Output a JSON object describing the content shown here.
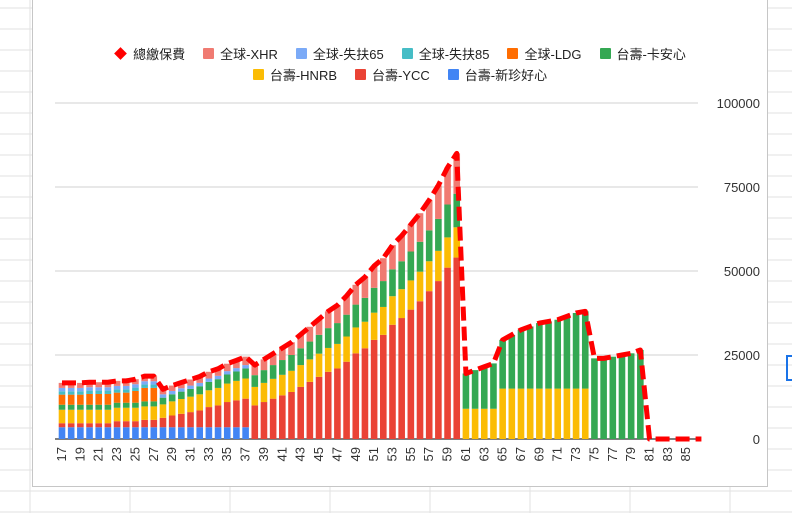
{
  "chart_data": {
    "type": "bar",
    "stacked": true,
    "x_start_age": 17,
    "x_end_age": 86,
    "x_tick_labels": [
      "17",
      "19",
      "21",
      "23",
      "25",
      "27",
      "29",
      "31",
      "33",
      "35",
      "37",
      "39",
      "41",
      "43",
      "45",
      "47",
      "49",
      "51",
      "53",
      "55",
      "57",
      "59",
      "61",
      "63",
      "65",
      "67",
      "69",
      "71",
      "73",
      "75",
      "77",
      "79",
      "81",
      "83",
      "85"
    ],
    "y_ticks": [
      "0",
      "25000",
      "50000",
      "75000",
      "100000"
    ],
    "y_tick_values": [
      0,
      25000,
      50000,
      75000,
      100000
    ],
    "ylim": [
      0,
      100000
    ],
    "grid": true,
    "legend_position": "top",
    "series": [
      {
        "name": "台壽-新珍好心",
        "color": "#4285f4",
        "values": [
          3500,
          3500,
          3500,
          3500,
          3500,
          3500,
          3500,
          3500,
          3500,
          3500,
          3500,
          3500,
          3500,
          3500,
          3500,
          3500,
          3500,
          3500,
          3500,
          3500,
          3500,
          0,
          0,
          0,
          0,
          0,
          0,
          0,
          0,
          0,
          0,
          0,
          0,
          0,
          0,
          0,
          0,
          0,
          0,
          0,
          0,
          0,
          0,
          0,
          0,
          0,
          0,
          0,
          0,
          0,
          0,
          0,
          0,
          0,
          0,
          0,
          0,
          0,
          0,
          0,
          0,
          0,
          0,
          0,
          0,
          0,
          0,
          0,
          0,
          0
        ]
      },
      {
        "name": "台壽-YCC",
        "color": "#ea4335",
        "values": [
          1200,
          1200,
          1200,
          1200,
          1200,
          1200,
          1800,
          1800,
          1800,
          2200,
          2200,
          2800,
          3500,
          4000,
          4500,
          5000,
          6000,
          6500,
          7500,
          8000,
          8500,
          10000,
          11000,
          12000,
          13000,
          14000,
          15500,
          17000,
          18500,
          20000,
          21000,
          23000,
          25500,
          27000,
          29500,
          31000,
          34000,
          36000,
          38500,
          41000,
          44000,
          47000,
          51000,
          54000,
          0,
          0,
          0,
          0,
          0,
          0,
          0,
          0,
          0,
          0,
          0,
          0,
          0,
          0,
          0,
          0,
          0,
          0,
          0,
          0,
          0,
          0,
          0,
          0,
          0,
          0
        ]
      },
      {
        "name": "台壽-HNRB",
        "color": "#fbbc04",
        "values": [
          4000,
          4000,
          4000,
          4000,
          4000,
          4000,
          4000,
          4000,
          4000,
          4000,
          4000,
          4000,
          4200,
          4400,
          4600,
          4800,
          5000,
          5200,
          5500,
          5800,
          6000,
          5500,
          5700,
          5900,
          6100,
          6300,
          6500,
          6700,
          6900,
          7100,
          7300,
          7500,
          7700,
          7900,
          8100,
          8300,
          8500,
          8600,
          8700,
          8800,
          8900,
          9000,
          9000,
          9000,
          9000,
          9000,
          9000,
          9000,
          15000,
          15000,
          15000,
          15000,
          15000,
          15000,
          15000,
          15000,
          15000,
          15000,
          0,
          0,
          0,
          0,
          0,
          0,
          0,
          0,
          0,
          0,
          0,
          0
        ]
      },
      {
        "name": "台壽-卡安心",
        "color": "#34a853",
        "values": [
          1500,
          1500,
          1500,
          1500,
          1500,
          1500,
          1500,
          1500,
          1500,
          1500,
          1500,
          2000,
          2100,
          2200,
          2300,
          2400,
          2500,
          2600,
          2700,
          2800,
          3000,
          3500,
          3800,
          4100,
          4400,
          4700,
          5000,
          5300,
          5600,
          5900,
          6200,
          6500,
          6800,
          7100,
          7400,
          7700,
          8000,
          8300,
          8600,
          8900,
          9200,
          9500,
          9800,
          10000,
          10500,
          11500,
          12500,
          13500,
          14500,
          16000,
          17500,
          18500,
          19500,
          20000,
          20500,
          21500,
          22500,
          23000,
          24000,
          24000,
          24500,
          25000,
          25500,
          26500,
          0,
          0,
          0,
          0,
          0,
          0
        ]
      },
      {
        "name": "全球-LDG",
        "color": "#ff6d01",
        "values": [
          3000,
          3000,
          3000,
          3200,
          3200,
          3200,
          3000,
          3000,
          3500,
          4000,
          4000,
          0,
          0,
          0,
          0,
          0,
          0,
          0,
          0,
          0,
          0,
          0,
          0,
          0,
          0,
          0,
          0,
          0,
          0,
          0,
          0,
          0,
          0,
          0,
          0,
          0,
          0,
          0,
          0,
          0,
          0,
          0,
          0,
          0,
          0,
          0,
          0,
          0,
          0,
          0,
          0,
          0,
          0,
          0,
          0,
          0,
          0,
          0,
          0,
          0,
          0,
          0,
          0,
          0,
          0,
          0,
          0,
          0,
          0,
          0
        ]
      },
      {
        "name": "全球-失扶85",
        "color": "#46bdc6",
        "values": [
          1000,
          1000,
          1000,
          1000,
          1000,
          1000,
          1000,
          1000,
          1000,
          1000,
          1000,
          0,
          0,
          0,
          0,
          0,
          0,
          0,
          0,
          0,
          0,
          0,
          0,
          0,
          0,
          0,
          0,
          0,
          0,
          0,
          0,
          0,
          0,
          0,
          0,
          0,
          0,
          0,
          0,
          0,
          0,
          0,
          0,
          0,
          0,
          0,
          0,
          0,
          0,
          0,
          0,
          0,
          0,
          0,
          0,
          0,
          0,
          0,
          0,
          0,
          0,
          0,
          0,
          0,
          0,
          0,
          0,
          0,
          0,
          0
        ]
      },
      {
        "name": "全球-失扶65",
        "color": "#7baaf7",
        "values": [
          1000,
          1000,
          1000,
          1000,
          1000,
          1000,
          1000,
          1000,
          1000,
          1000,
          1000,
          1000,
          1000,
          1000,
          1000,
          1000,
          1000,
          1000,
          1000,
          1000,
          1000,
          0,
          0,
          0,
          0,
          0,
          0,
          0,
          0,
          0,
          0,
          0,
          0,
          0,
          0,
          0,
          0,
          0,
          0,
          0,
          0,
          0,
          0,
          0,
          0,
          0,
          0,
          0,
          0,
          0,
          0,
          0,
          0,
          0,
          0,
          0,
          0,
          0,
          0,
          0,
          0,
          0,
          0,
          0,
          0,
          0,
          0,
          0,
          0,
          0
        ]
      },
      {
        "name": "全球-XHR",
        "color": "#f07b72",
        "values": [
          1500,
          1500,
          1500,
          1500,
          1500,
          1500,
          1500,
          1500,
          1500,
          1500,
          1500,
          1500,
          1600,
          1700,
          1800,
          1900,
          2000,
          2100,
          2200,
          2300,
          2500,
          3000,
          3200,
          3400,
          3600,
          3800,
          4100,
          4400,
          4700,
          5000,
          5300,
          5600,
          5900,
          6200,
          6500,
          6800,
          7200,
          7600,
          8000,
          8500,
          9000,
          10000,
          11000,
          12000,
          0,
          0,
          0,
          0,
          0,
          0,
          0,
          0,
          0,
          0,
          0,
          0,
          0,
          0,
          0,
          0,
          0,
          0,
          0,
          0,
          0,
          0,
          0,
          0,
          0,
          0
        ]
      }
    ],
    "line": {
      "name": "總繳保費",
      "type": "line",
      "style": "dashed",
      "color": "#ff0000",
      "values": [
        16700,
        16700,
        16700,
        16900,
        16900,
        16900,
        17300,
        17300,
        17800,
        18700,
        18700,
        14800,
        15900,
        16800,
        17700,
        18600,
        20000,
        20900,
        22400,
        23400,
        24500,
        22000,
        23700,
        25400,
        27100,
        28800,
        31100,
        33400,
        35700,
        38000,
        39800,
        42600,
        45900,
        48200,
        51500,
        53800,
        57700,
        60500,
        63800,
        67200,
        71100,
        75500,
        80800,
        85000,
        19500,
        20500,
        21500,
        22500,
        29500,
        31000,
        32500,
        33500,
        34500,
        35000,
        35500,
        36500,
        37500,
        38000,
        24000,
        24000,
        24500,
        25000,
        25500,
        26500,
        0,
        0,
        0,
        0,
        0,
        0
      ]
    }
  },
  "legend": {
    "row1": [
      {
        "label": "總繳保費",
        "marker": "diamond",
        "color": "#ff0000"
      },
      {
        "label": "全球-XHR",
        "marker": "square",
        "color": "#f07b72"
      },
      {
        "label": "全球-失扶65",
        "marker": "square",
        "color": "#7baaf7"
      },
      {
        "label": "全球-失扶85",
        "marker": "square",
        "color": "#46bdc6"
      },
      {
        "label": "全球-LDG",
        "marker": "square",
        "color": "#ff6d01"
      },
      {
        "label": "台壽-卡安心",
        "marker": "square",
        "color": "#34a853"
      }
    ],
    "row2": [
      {
        "label": "台壽-HNRB",
        "marker": "square",
        "color": "#fbbc04"
      },
      {
        "label": "台壽-YCC",
        "marker": "square",
        "color": "#ea4335"
      },
      {
        "label": "台壽-新珍好心",
        "marker": "square",
        "color": "#4285f4"
      }
    ]
  }
}
